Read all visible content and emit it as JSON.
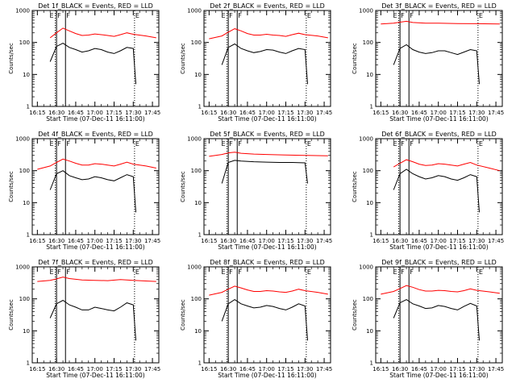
{
  "figure": {
    "y_axis_label": "Counts/sec",
    "x_axis_label": "Start Time (07-Dec-11 16:11:00)",
    "x_tick_labels": [
      "16:15",
      "16:30",
      "16:45",
      "17:00",
      "17:15",
      "17:30",
      "17:45"
    ],
    "y_tick_labels": [
      "1",
      "10",
      "100",
      "1000"
    ],
    "interval_markers": [
      "E",
      "F",
      "F",
      "E"
    ],
    "colors": {
      "events": "#000000",
      "lld": "#ff0000",
      "background": "#ffffff"
    }
  },
  "chart_data": [
    {
      "type": "line",
      "title": "Det 1f_BLACK = Events, RED = LLD",
      "xlabel": "Start Time (07-Dec-11 16:11:00)",
      "ylabel": "Counts/sec",
      "y_scale": "log",
      "ylim": [
        1,
        1000
      ],
      "xlim": [
        "16:11",
        "17:50"
      ],
      "markers": [
        {
          "label": "E",
          "x": "16:29",
          "style": "dotted"
        },
        {
          "label": "F",
          "x": "16:30",
          "style": "solid"
        },
        {
          "label": "F",
          "x": "16:37",
          "style": "solid"
        },
        {
          "label": "E",
          "x": "17:31",
          "style": "dotted"
        }
      ],
      "series": [
        {
          "name": "BLACK = Events",
          "color": "#000000",
          "x": [
            "16:25",
            "16:30",
            "16:35",
            "16:40",
            "16:45",
            "16:50",
            "16:55",
            "17:00",
            "17:05",
            "17:10",
            "17:15",
            "17:20",
            "17:25",
            "17:30",
            "17:32"
          ],
          "values": [
            25,
            75,
            95,
            70,
            60,
            50,
            55,
            65,
            60,
            50,
            45,
            55,
            70,
            65,
            5
          ]
        },
        {
          "name": "RED = LLD",
          "color": "#ff0000",
          "x": [
            "16:25",
            "16:30",
            "16:35",
            "16:40",
            "16:45",
            "16:50",
            "16:55",
            "17:00",
            "17:05",
            "17:10",
            "17:15",
            "17:20",
            "17:25",
            "17:30",
            "17:40",
            "17:48"
          ],
          "values": [
            140,
            200,
            280,
            230,
            190,
            165,
            170,
            185,
            175,
            165,
            155,
            175,
            200,
            180,
            160,
            140
          ]
        }
      ]
    },
    {
      "type": "line",
      "title": "Det 2f_BLACK = Events, RED = LLD",
      "xlabel": "Start Time (07-Dec-11 16:11:00)",
      "ylabel": "Counts/sec",
      "y_scale": "log",
      "ylim": [
        1,
        1000
      ],
      "xlim": [
        "16:11",
        "17:50"
      ],
      "markers": [
        {
          "label": "E",
          "x": "16:29",
          "style": "dotted"
        },
        {
          "label": "F",
          "x": "16:30",
          "style": "solid"
        },
        {
          "label": "F",
          "x": "16:37",
          "style": "solid"
        },
        {
          "label": "E",
          "x": "17:31",
          "style": "dotted"
        }
      ],
      "series": [
        {
          "name": "BLACK = Events",
          "color": "#000000",
          "x": [
            "16:25",
            "16:30",
            "16:35",
            "16:40",
            "16:45",
            "16:50",
            "16:55",
            "17:00",
            "17:05",
            "17:10",
            "17:15",
            "17:20",
            "17:25",
            "17:30",
            "17:32"
          ],
          "values": [
            20,
            70,
            90,
            65,
            55,
            48,
            52,
            60,
            58,
            50,
            45,
            55,
            65,
            60,
            5
          ]
        },
        {
          "name": "RED = LLD",
          "color": "#ff0000",
          "x": [
            "16:15",
            "16:25",
            "16:30",
            "16:35",
            "16:40",
            "16:45",
            "16:50",
            "16:55",
            "17:00",
            "17:05",
            "17:10",
            "17:15",
            "17:20",
            "17:25",
            "17:30",
            "17:40",
            "17:48"
          ],
          "values": [
            130,
            160,
            210,
            270,
            230,
            190,
            170,
            170,
            180,
            170,
            165,
            155,
            175,
            195,
            175,
            160,
            140
          ]
        }
      ]
    },
    {
      "type": "line",
      "title": "Det 3f_BLACK = Events, RED = LLD",
      "xlabel": "Start Time (07-Dec-11 16:11:00)",
      "ylabel": "Counts/sec",
      "y_scale": "log",
      "ylim": [
        1,
        1000
      ],
      "xlim": [
        "16:11",
        "17:50"
      ],
      "markers": [
        {
          "label": "E",
          "x": "16:29",
          "style": "dotted"
        },
        {
          "label": "F",
          "x": "16:30",
          "style": "solid"
        },
        {
          "label": "F",
          "x": "16:37",
          "style": "solid"
        },
        {
          "label": "E",
          "x": "17:31",
          "style": "dotted"
        }
      ],
      "series": [
        {
          "name": "BLACK = Events",
          "color": "#000000",
          "x": [
            "16:25",
            "16:30",
            "16:35",
            "16:40",
            "16:45",
            "16:50",
            "16:55",
            "17:00",
            "17:05",
            "17:10",
            "17:15",
            "17:20",
            "17:25",
            "17:30",
            "17:32"
          ],
          "values": [
            20,
            65,
            85,
            60,
            50,
            45,
            48,
            55,
            55,
            48,
            42,
            50,
            60,
            55,
            5
          ]
        },
        {
          "name": "RED = LLD",
          "color": "#ff0000",
          "x": [
            "16:15",
            "16:25",
            "16:30",
            "16:35",
            "16:40",
            "16:50",
            "17:00",
            "17:15",
            "17:30",
            "17:48"
          ],
          "values": [
            380,
            400,
            430,
            460,
            420,
            400,
            400,
            390,
            385,
            380
          ]
        }
      ]
    },
    {
      "type": "line",
      "title": "Det 4f_BLACK = Events, RED = LLD",
      "xlabel": "Start Time (07-Dec-11 16:11:00)",
      "ylabel": "Counts/sec",
      "y_scale": "log",
      "ylim": [
        1,
        1000
      ],
      "xlim": [
        "16:11",
        "17:50"
      ],
      "markers": [
        {
          "label": "E",
          "x": "16:29",
          "style": "dotted"
        },
        {
          "label": "F",
          "x": "16:30",
          "style": "solid"
        },
        {
          "label": "F",
          "x": "16:37",
          "style": "solid"
        },
        {
          "label": "E",
          "x": "17:31",
          "style": "dotted"
        }
      ],
      "series": [
        {
          "name": "BLACK = Events",
          "color": "#000000",
          "x": [
            "16:25",
            "16:30",
            "16:35",
            "16:40",
            "16:45",
            "16:50",
            "16:55",
            "17:00",
            "17:05",
            "17:10",
            "17:15",
            "17:20",
            "17:25",
            "17:30",
            "17:32"
          ],
          "values": [
            25,
            80,
            100,
            70,
            60,
            52,
            55,
            65,
            60,
            52,
            48,
            60,
            75,
            65,
            5
          ]
        },
        {
          "name": "RED = LLD",
          "color": "#ff0000",
          "x": [
            "16:15",
            "16:25",
            "16:30",
            "16:35",
            "16:40",
            "16:45",
            "16:50",
            "16:55",
            "17:00",
            "17:05",
            "17:10",
            "17:15",
            "17:20",
            "17:25",
            "17:30",
            "17:40",
            "17:48"
          ],
          "values": [
            110,
            140,
            180,
            230,
            200,
            170,
            150,
            150,
            165,
            160,
            150,
            140,
            160,
            185,
            160,
            140,
            120
          ]
        }
      ]
    },
    {
      "type": "line",
      "title": "Det 5f_BLACK = Events, RED = LLD",
      "xlabel": "Start Time (07-Dec-11 16:11:00)",
      "ylabel": "Counts/sec",
      "y_scale": "log",
      "ylim": [
        1,
        1000
      ],
      "xlim": [
        "16:11",
        "17:50"
      ],
      "markers": [
        {
          "label": "E",
          "x": "16:29",
          "style": "dotted"
        },
        {
          "label": "F",
          "x": "16:30",
          "style": "solid"
        },
        {
          "label": "F",
          "x": "16:37",
          "style": "solid"
        },
        {
          "label": "E",
          "x": "17:31",
          "style": "dotted"
        }
      ],
      "series": [
        {
          "name": "BLACK = Events",
          "color": "#000000",
          "x": [
            "16:25",
            "16:30",
            "16:35",
            "16:40",
            "16:50",
            "17:00",
            "17:10",
            "17:20",
            "17:30",
            "17:32"
          ],
          "values": [
            40,
            180,
            210,
            200,
            190,
            185,
            180,
            180,
            175,
            40
          ]
        },
        {
          "name": "RED = LLD",
          "color": "#ff0000",
          "x": [
            "16:15",
            "16:25",
            "16:30",
            "16:35",
            "16:40",
            "16:50",
            "17:00",
            "17:15",
            "17:30",
            "17:48"
          ],
          "values": [
            280,
            320,
            360,
            380,
            350,
            330,
            320,
            310,
            300,
            290
          ]
        }
      ]
    },
    {
      "type": "line",
      "title": "Det 6f_BLACK = Events, RED = LLD",
      "xlabel": "Start Time (07-Dec-11 16:11:00)",
      "ylabel": "Counts/sec",
      "y_scale": "log",
      "ylim": [
        1,
        1000
      ],
      "xlim": [
        "16:11",
        "17:50"
      ],
      "markers": [
        {
          "label": "E",
          "x": "16:29",
          "style": "dotted"
        },
        {
          "label": "F",
          "x": "16:30",
          "style": "solid"
        },
        {
          "label": "F",
          "x": "16:37",
          "style": "solid"
        },
        {
          "label": "E",
          "x": "17:31",
          "style": "dotted"
        }
      ],
      "series": [
        {
          "name": "BLACK = Events",
          "color": "#000000",
          "x": [
            "16:25",
            "16:30",
            "16:35",
            "16:40",
            "16:45",
            "16:50",
            "16:55",
            "17:00",
            "17:05",
            "17:10",
            "17:15",
            "17:20",
            "17:25",
            "17:30",
            "17:32"
          ],
          "values": [
            25,
            80,
            110,
            80,
            65,
            55,
            60,
            70,
            65,
            55,
            50,
            60,
            75,
            65,
            5
          ]
        },
        {
          "name": "RED = LLD",
          "color": "#ff0000",
          "x": [
            "16:25",
            "16:30",
            "16:35",
            "16:40",
            "16:45",
            "16:50",
            "16:55",
            "17:00",
            "17:05",
            "17:10",
            "17:15",
            "17:20",
            "17:25",
            "17:30",
            "17:40",
            "17:48"
          ],
          "values": [
            130,
            170,
            220,
            190,
            160,
            145,
            150,
            165,
            160,
            150,
            140,
            160,
            180,
            150,
            120,
            100
          ]
        }
      ]
    },
    {
      "type": "line",
      "title": "Det 7f_BLACK = Events, RED = LLD",
      "xlabel": "Start Time (07-Dec-11 16:11:00)",
      "ylabel": "Counts/sec",
      "y_scale": "log",
      "ylim": [
        1,
        1000
      ],
      "xlim": [
        "16:11",
        "17:50"
      ],
      "markers": [
        {
          "label": "E",
          "x": "16:29",
          "style": "dotted"
        },
        {
          "label": "F",
          "x": "16:30",
          "style": "solid"
        },
        {
          "label": "F",
          "x": "16:37",
          "style": "solid"
        },
        {
          "label": "E",
          "x": "17:31",
          "style": "dotted"
        }
      ],
      "series": [
        {
          "name": "BLACK = Events",
          "color": "#000000",
          "x": [
            "16:25",
            "16:30",
            "16:35",
            "16:40",
            "16:45",
            "16:50",
            "16:55",
            "17:00",
            "17:05",
            "17:10",
            "17:15",
            "17:20",
            "17:25",
            "17:30",
            "17:32"
          ],
          "values": [
            25,
            70,
            90,
            65,
            55,
            45,
            45,
            55,
            50,
            45,
            42,
            55,
            75,
            65,
            5
          ]
        },
        {
          "name": "RED = LLD",
          "color": "#ff0000",
          "x": [
            "16:15",
            "16:25",
            "16:30",
            "16:35",
            "16:40",
            "16:50",
            "17:00",
            "17:10",
            "17:20",
            "17:30",
            "17:48"
          ],
          "values": [
            350,
            380,
            420,
            480,
            430,
            390,
            380,
            370,
            400,
            380,
            350
          ]
        }
      ]
    },
    {
      "type": "line",
      "title": "Det 8f_BLACK = Events, RED = LLD",
      "xlabel": "Start Time (07-Dec-11 16:11:00)",
      "ylabel": "Counts/sec",
      "y_scale": "log",
      "ylim": [
        1,
        1000
      ],
      "xlim": [
        "16:11",
        "17:50"
      ],
      "markers": [
        {
          "label": "E",
          "x": "16:29",
          "style": "dotted"
        },
        {
          "label": "F",
          "x": "16:30",
          "style": "solid"
        },
        {
          "label": "F",
          "x": "16:37",
          "style": "solid"
        },
        {
          "label": "E",
          "x": "17:31",
          "style": "dotted"
        }
      ],
      "series": [
        {
          "name": "BLACK = Events",
          "color": "#000000",
          "x": [
            "16:25",
            "16:30",
            "16:35",
            "16:40",
            "16:45",
            "16:50",
            "16:55",
            "17:00",
            "17:05",
            "17:10",
            "17:15",
            "17:20",
            "17:25",
            "17:30",
            "17:32"
          ],
          "values": [
            20,
            70,
            95,
            70,
            60,
            52,
            55,
            62,
            58,
            50,
            45,
            55,
            70,
            60,
            5
          ]
        },
        {
          "name": "RED = LLD",
          "color": "#ff0000",
          "x": [
            "16:15",
            "16:25",
            "16:30",
            "16:35",
            "16:40",
            "16:45",
            "16:50",
            "16:55",
            "17:00",
            "17:05",
            "17:10",
            "17:15",
            "17:20",
            "17:25",
            "17:30",
            "17:40",
            "17:48"
          ],
          "values": [
            130,
            160,
            200,
            250,
            220,
            190,
            170,
            170,
            180,
            175,
            165,
            160,
            175,
            200,
            180,
            160,
            140
          ]
        }
      ]
    },
    {
      "type": "line",
      "title": "Det 9f_BLACK = Events, RED = LLD",
      "xlabel": "Start Time (07-Dec-11 16:11:00)",
      "ylabel": "Counts/sec",
      "y_scale": "log",
      "ylim": [
        1,
        1000
      ],
      "xlim": [
        "16:11",
        "17:50"
      ],
      "markers": [
        {
          "label": "E",
          "x": "16:29",
          "style": "dotted"
        },
        {
          "label": "F",
          "x": "16:30",
          "style": "solid"
        },
        {
          "label": "F",
          "x": "16:37",
          "style": "solid"
        },
        {
          "label": "E",
          "x": "17:31",
          "style": "dotted"
        }
      ],
      "series": [
        {
          "name": "BLACK = Events",
          "color": "#000000",
          "x": [
            "16:25",
            "16:30",
            "16:35",
            "16:40",
            "16:45",
            "16:50",
            "16:55",
            "17:00",
            "17:05",
            "17:10",
            "17:15",
            "17:20",
            "17:25",
            "17:30",
            "17:32"
          ],
          "values": [
            25,
            75,
            95,
            70,
            60,
            50,
            52,
            62,
            58,
            50,
            45,
            58,
            72,
            60,
            5
          ]
        },
        {
          "name": "RED = LLD",
          "color": "#ff0000",
          "x": [
            "16:15",
            "16:25",
            "16:30",
            "16:35",
            "16:40",
            "16:45",
            "16:50",
            "16:55",
            "17:00",
            "17:05",
            "17:10",
            "17:15",
            "17:20",
            "17:25",
            "17:30",
            "17:40",
            "17:48"
          ],
          "values": [
            140,
            170,
            210,
            260,
            230,
            195,
            175,
            175,
            185,
            180,
            170,
            165,
            180,
            205,
            185,
            165,
            150
          ]
        }
      ]
    }
  ]
}
